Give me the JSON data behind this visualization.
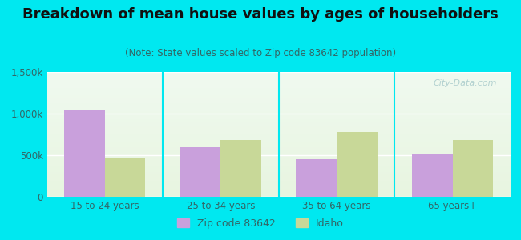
{
  "title": "Breakdown of mean house values by ages of householders",
  "subtitle": "(Note: State values scaled to Zip code 83642 population)",
  "categories": [
    "15 to 24 years",
    "25 to 34 years",
    "35 to 64 years",
    "65 years+"
  ],
  "zip_values": [
    1050000,
    600000,
    450000,
    510000
  ],
  "state_values": [
    470000,
    680000,
    775000,
    685000
  ],
  "zip_color": "#c9a0dc",
  "state_color": "#c8d898",
  "background_outer": "#00e8f0",
  "ylim": [
    0,
    1500000
  ],
  "yticks": [
    0,
    500000,
    1000000,
    1500000
  ],
  "ytick_labels": [
    "0",
    "500k",
    "1,000k",
    "1,500k"
  ],
  "legend_zip_label": "Zip code 83642",
  "legend_state_label": "Idaho",
  "bar_width": 0.35,
  "title_fontsize": 13,
  "subtitle_fontsize": 8.5,
  "tick_fontsize": 8.5,
  "legend_fontsize": 9,
  "title_color": "#111111",
  "subtitle_color": "#336666",
  "tick_color": "#336666",
  "watermark_color": "#aacccc"
}
